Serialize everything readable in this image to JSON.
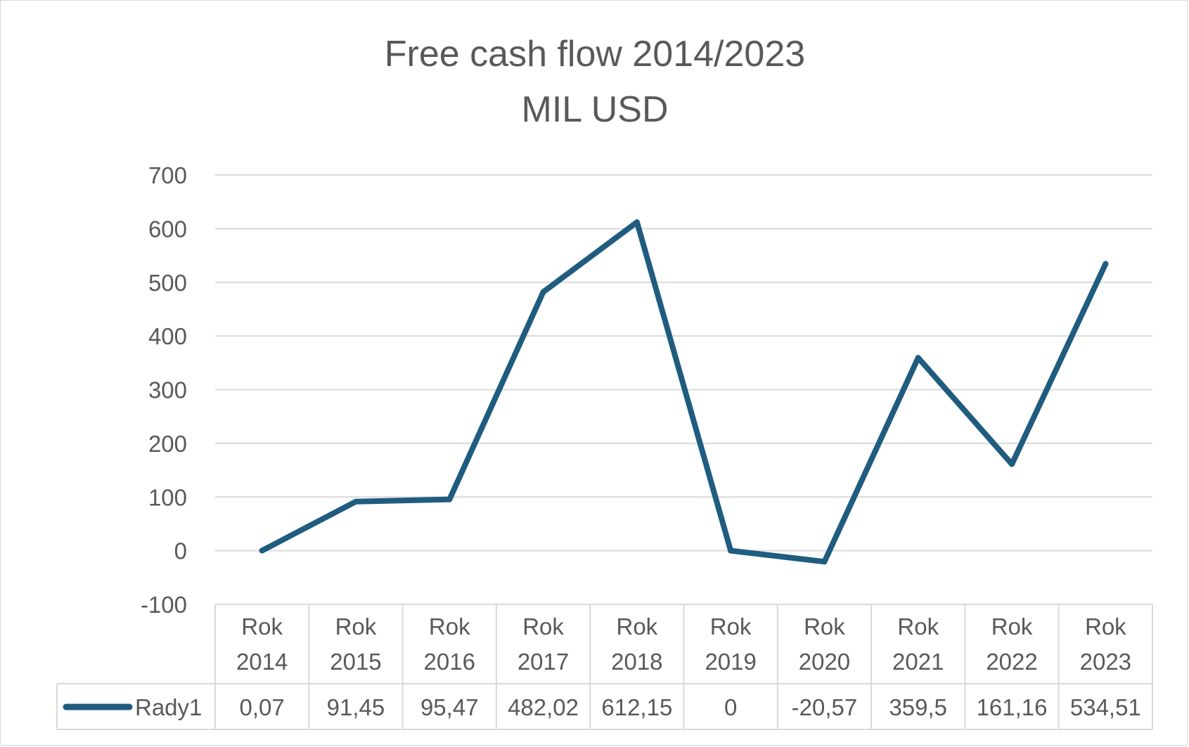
{
  "chart_data": {
    "type": "line",
    "title": "Free cash flow 2014/2023",
    "subtitle": "MIL USD",
    "xlabel": "",
    "ylabel": "",
    "categories": [
      [
        "Rok",
        "2014"
      ],
      [
        "Rok",
        "2015"
      ],
      [
        "Rok",
        "2016"
      ],
      [
        "Rok",
        "2017"
      ],
      [
        "Rok",
        "2018"
      ],
      [
        "Rok",
        "2019"
      ],
      [
        "Rok",
        "2020"
      ],
      [
        "Rok",
        "2021"
      ],
      [
        "Rok",
        "2022"
      ],
      [
        "Rok",
        "2023"
      ]
    ],
    "series": [
      {
        "name": "Rady1",
        "values": [
          0.07,
          91.45,
          95.47,
          482.02,
          612.15,
          0,
          -20.57,
          359.5,
          161.16,
          534.51
        ],
        "labels": [
          "0,07",
          "91,45",
          "95,47",
          "482,02",
          "612,15",
          "0",
          "-20,57",
          "359,5",
          "161,16",
          "534,51"
        ],
        "color": "#1f5c7f"
      }
    ],
    "ylim": [
      -100,
      700
    ],
    "yticks": [
      700,
      600,
      500,
      400,
      300,
      200,
      100,
      0,
      -100
    ],
    "grid": true,
    "legend": "data-table"
  },
  "colors": {
    "text": "#595959",
    "grid": "#d9d9d9",
    "line": "#1f5c7f"
  }
}
